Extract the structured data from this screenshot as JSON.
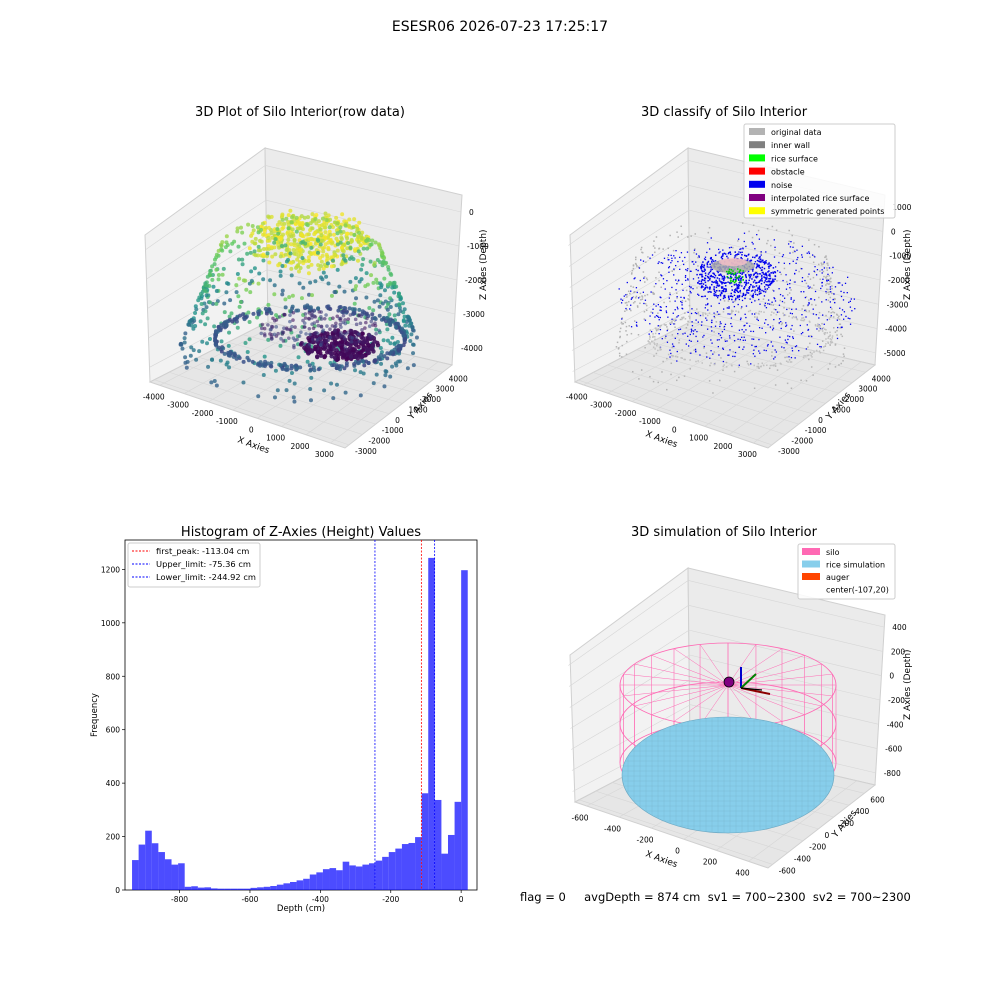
{
  "suptitle": "ESESR06 2026-07-23 17:25:17",
  "panels": {
    "raw": {
      "title": "3D Plot of Silo Interior(row data)",
      "xlabel": "X Axies",
      "ylabel": "Y Axies",
      "zlabel": "Z Axies (Depth)",
      "xticks": [
        "-4000",
        "-3000",
        "-2000",
        "-1000",
        "0",
        "1000",
        "2000",
        "3000"
      ],
      "yticks": [
        "-3000",
        "-2000",
        "-1000",
        "0",
        "1000",
        "2000",
        "3000",
        "4000"
      ],
      "zticks": [
        "-4000",
        "-3000",
        "-2000",
        "-1000",
        "0"
      ]
    },
    "classify": {
      "title": "3D classify of Silo Interior",
      "xlabel": "X Axies",
      "ylabel": "Y Axies",
      "zlabel": "Z Axies (Depth)",
      "xticks": [
        "-4000",
        "-3000",
        "-2000",
        "-1000",
        "0",
        "1000",
        "2000",
        "3000"
      ],
      "yticks": [
        "-3000",
        "-2000",
        "-1000",
        "0",
        "1000",
        "2000",
        "3000",
        "4000"
      ],
      "zticks": [
        "-5000",
        "-4000",
        "-3000",
        "-2000",
        "-1000",
        "0",
        "1000"
      ],
      "legend": [
        {
          "label": "original data",
          "color": "#b3b3b3"
        },
        {
          "label": "inner wall",
          "color": "#808080"
        },
        {
          "label": "rice surface",
          "color": "#00ff00"
        },
        {
          "label": "obstacle",
          "color": "#ff0000"
        },
        {
          "label": "noise",
          "color": "#0000ee"
        },
        {
          "label": "interpolated rice surface",
          "color": "#800080"
        },
        {
          "label": "symmetric generated points",
          "color": "#ffff00"
        }
      ]
    },
    "histogram": {
      "title": "Histogram of Z-Axies (Height) Values",
      "xlabel": "Depth (cm)",
      "ylabel": "Frequency",
      "xticks": [
        "-800",
        "-600",
        "-400",
        "-200",
        "0"
      ],
      "yticks": [
        "0",
        "200",
        "400",
        "600",
        "800",
        "1000",
        "1200"
      ],
      "legend": [
        {
          "label": "first_peak: -113.04 cm",
          "color": "#ff0000"
        },
        {
          "label": "Upper_limit: -75.36 cm",
          "color": "#0000ff"
        },
        {
          "label": "Lower_limit: -244.92 cm",
          "color": "#0000ff"
        }
      ]
    },
    "simulation": {
      "title": "3D simulation of Silo Interior",
      "xlabel": "X Axies",
      "ylabel": "Y Axies",
      "zlabel": "Z Axies (Depth)",
      "xticks": [
        "-600",
        "-400",
        "-200",
        "0",
        "200",
        "400"
      ],
      "yticks": [
        "-600",
        "-400",
        "-200",
        "0",
        "200",
        "400",
        "600"
      ],
      "zticks": [
        "-800",
        "-600",
        "-400",
        "-200",
        "0",
        "200",
        "400"
      ],
      "legend": [
        {
          "label": "silo",
          "color": "#ff69b4"
        },
        {
          "label": "rice simulation",
          "color": "#87ceeb"
        },
        {
          "label": "auger",
          "color": "#ff4500"
        },
        {
          "label": "center(-107,20)",
          "color": ""
        }
      ]
    }
  },
  "info_line": "flag = 0     avgDepth = 874 cm  sv1 = 700~2300  sv2 = 700~2300",
  "chart_data": [
    {
      "type": "bar",
      "title": "Histogram of Z-Axies (Height) Values",
      "xlabel": "Depth (cm)",
      "ylabel": "Frequency",
      "xlim": [
        -955,
        45
      ],
      "ylim": [
        0,
        1310
      ],
      "bin_width": 18.7,
      "bin_start": -935,
      "values": [
        112,
        170,
        222,
        175,
        142,
        115,
        95,
        100,
        12,
        14,
        9,
        10,
        6,
        5,
        5,
        5,
        5,
        5,
        8,
        10,
        12,
        15,
        20,
        25,
        30,
        36,
        42,
        58,
        66,
        78,
        82,
        74,
        106,
        92,
        88,
        95,
        100,
        110,
        124,
        142,
        155,
        172,
        176,
        198,
        362,
        1243,
        337,
        136,
        206,
        330,
        1197
      ],
      "vlines": [
        {
          "name": "first_peak",
          "x": -113.04,
          "color": "#ff0000"
        },
        {
          "name": "Upper_limit",
          "x": -75.36,
          "color": "#0000ff"
        },
        {
          "name": "Lower_limit",
          "x": -244.92,
          "color": "#0000ff"
        }
      ],
      "bar_color": "#0000ff"
    },
    {
      "type": "scatter",
      "title": "3D Plot of Silo Interior(row data)",
      "xlim": [
        -4000,
        3000
      ],
      "ylim": [
        -3000,
        4000
      ],
      "zlim": [
        -4000,
        0
      ],
      "colormap": "viridis"
    },
    {
      "type": "scatter",
      "title": "3D classify of Silo Interior",
      "xlim": [
        -4000,
        3000
      ],
      "ylim": [
        -3000,
        4000
      ],
      "zlim": [
        -5000,
        1000
      ]
    },
    {
      "type": "scatter",
      "title": "3D simulation of Silo Interior",
      "xlim": [
        -600,
        400
      ],
      "ylim": [
        -600,
        600
      ],
      "zlim": [
        -800,
        400
      ]
    }
  ]
}
